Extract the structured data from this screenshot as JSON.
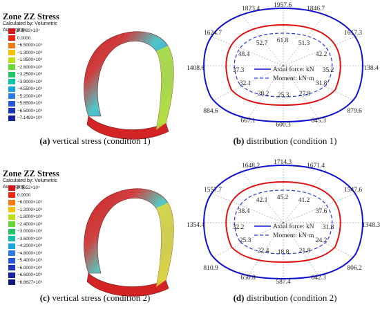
{
  "panels": [
    {
      "id": "a",
      "legend": {
        "title": "Zone ZZ Stress",
        "subtitle": "Calculated by: Volumetric Averaging",
        "items": [
          {
            "label": "3.2492×10⁴",
            "color": "#d11b1b"
          },
          {
            "label": "0.0000",
            "color": "#ef2a10"
          },
          {
            "label": "−6.5000×10⁵",
            "color": "#f57a0f"
          },
          {
            "label": "−1.3000×10⁶",
            "color": "#f2c20f"
          },
          {
            "label": "−1.9500×10⁶",
            "color": "#b9e21d"
          },
          {
            "label": "−2.6000×10⁶",
            "color": "#66d63a"
          },
          {
            "label": "−3.2500×10⁶",
            "color": "#25c268"
          },
          {
            "label": "−3.9000×10⁶",
            "color": "#13c1a6"
          },
          {
            "label": "−4.5500×10⁶",
            "color": "#1aa7df"
          },
          {
            "label": "−5.2000×10⁶",
            "color": "#2f7ce6"
          },
          {
            "label": "−5.8500×10⁶",
            "color": "#2956d8"
          },
          {
            "label": "−6.5000×10⁶",
            "color": "#1e34b8"
          },
          {
            "label": "−7.1493×10⁶",
            "color": "#16209a"
          }
        ]
      },
      "caption": {
        "tag": "(a)",
        "text": " vertical stress (condition 1)"
      }
    },
    {
      "id": "b",
      "axial_values": [
        "1957.6",
        "1846.7",
        "1617.3",
        "138.4",
        "879.6",
        "645.3",
        "600.3",
        "667.1",
        "884.6",
        "1408.6",
        "1624.7",
        "1823.4"
      ],
      "moment_values": [
        "61.8",
        "51.3",
        "42.2",
        "35.2",
        "31.8",
        "27.8",
        "25.3",
        "28.2",
        "32.1",
        "37.3",
        "48.4",
        "52.7"
      ],
      "legend_axial": "Axial force: kN",
      "legend_moment": "Moment: kN·m",
      "caption": {
        "tag": "(b)",
        "text": " distribution (condition 1)"
      }
    },
    {
      "id": "c",
      "legend": {
        "title": "Zone ZZ Stress",
        "subtitle": "Calculated by: Volumetric Averaging",
        "items": [
          {
            "label": "3.0652×10⁴",
            "color": "#d11b1b"
          },
          {
            "label": "0.0000",
            "color": "#ef2a10"
          },
          {
            "label": "−6.0000×10⁵",
            "color": "#f57a0f"
          },
          {
            "label": "−1.2000×10⁶",
            "color": "#f2c20f"
          },
          {
            "label": "−1.8000×10⁶",
            "color": "#b9e21d"
          },
          {
            "label": "−2.4000×10⁶",
            "color": "#66d63a"
          },
          {
            "label": "−3.0000×10⁶",
            "color": "#25c268"
          },
          {
            "label": "−3.6000×10⁶",
            "color": "#13c1a6"
          },
          {
            "label": "−4.2000×10⁶",
            "color": "#1aa7df"
          },
          {
            "label": "−4.8000×10⁶",
            "color": "#2f7ce6"
          },
          {
            "label": "−5.4000×10⁶",
            "color": "#2956d8"
          },
          {
            "label": "−6.0000×10⁶",
            "color": "#1e34b8"
          },
          {
            "label": "−6.6000×10⁶",
            "color": "#16209a"
          },
          {
            "label": "−6.8627×10⁶",
            "color": "#101880"
          }
        ]
      },
      "caption": {
        "tag": "(c)",
        "text": " vertical stress (condition 2)"
      }
    },
    {
      "id": "d",
      "axial_values": [
        "1714.3",
        "1671.4",
        "1547.6",
        "1348.3",
        "806.2",
        "642.3",
        "587.4",
        "650.8",
        "810.9",
        "1354.4",
        "1557.7",
        "1648.2"
      ],
      "moment_values": [
        "45.2",
        "41.2",
        "37.6",
        "31.8",
        "24.2",
        "21.8",
        "18.8",
        "22.4",
        "25.3",
        "32.2",
        "38.4",
        "42.1"
      ],
      "legend_axial": "Axial force: kN",
      "legend_moment": "Moment: kN·m",
      "caption": {
        "tag": "(d)",
        "text": " distribution (condition 2)"
      }
    }
  ],
  "colors": {
    "outer": "#1010d0",
    "inner": "#e01010",
    "dash": "#2a3ad8",
    "guide": "#777777"
  }
}
